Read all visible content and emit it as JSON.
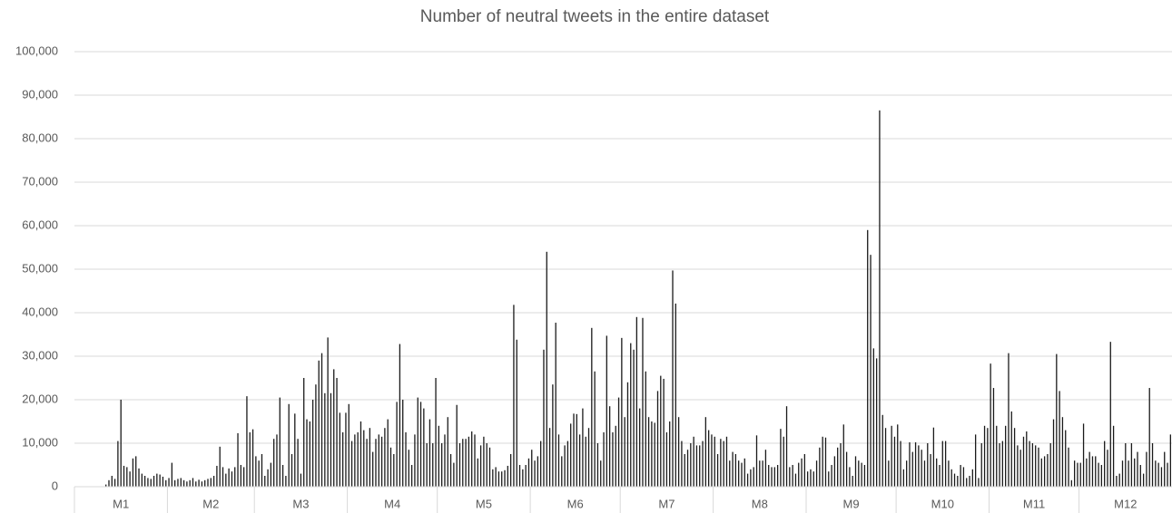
{
  "chart_data": {
    "type": "bar",
    "title": "Number of neutral tweets in the entire dataset",
    "color": "#1a1a1a",
    "grid": true,
    "ylim": [
      0,
      100000
    ],
    "yticks": [
      0,
      {
        "value": 10000,
        "label": "10,000"
      },
      {
        "value": 20000,
        "label": "20,000"
      },
      {
        "value": 30000,
        "label": "30,000"
      },
      {
        "value": 40000,
        "label": "40,000"
      },
      {
        "value": 50000,
        "label": "50,000"
      },
      {
        "value": 60000,
        "label": "60,000"
      },
      {
        "value": 70000,
        "label": "70,000"
      },
      {
        "value": 80000,
        "label": "80,000"
      },
      {
        "value": 90000,
        "label": "90,000"
      },
      {
        "value": 100000,
        "label": "100,000"
      }
    ],
    "groups": [
      {
        "label": "M1",
        "values": [
          0,
          0,
          0,
          0,
          0,
          0,
          0,
          0,
          0,
          0,
          500,
          1500,
          2500,
          1800,
          10500,
          20000,
          4800,
          4500,
          3500,
          6500,
          7000,
          4200,
          3000,
          2500,
          2000,
          1800,
          2500,
          3000,
          2800,
          2300,
          1500
        ]
      },
      {
        "label": "M2",
        "values": [
          2000,
          5500,
          1500,
          1800,
          2000,
          1500,
          1200,
          1500,
          2000,
          1200,
          1600,
          1200,
          1500,
          1800,
          2000,
          2500,
          4800,
          9200,
          4500,
          3000,
          4200,
          3500,
          4500,
          12300,
          5000,
          4500,
          20800,
          12500,
          13200
        ]
      },
      {
        "label": "M3",
        "values": [
          7000,
          6000,
          7500,
          2500,
          4000,
          5500,
          11000,
          12000,
          20500,
          5000,
          2500,
          19000,
          7500,
          16800,
          11000,
          3000,
          25000,
          15500,
          15000,
          20000,
          23500,
          29000,
          30700,
          21500,
          34300,
          21500,
          27000,
          25000,
          17000,
          12500,
          17000
        ]
      },
      {
        "label": "M4",
        "values": [
          19000,
          10500,
          12000,
          12500,
          15000,
          13000,
          11000,
          13500,
          8000,
          11000,
          12000,
          11500,
          13500,
          15500,
          9000,
          7500,
          19500,
          32800,
          20000,
          12500,
          8500,
          5000,
          12000,
          20500,
          19500,
          18000,
          10000,
          15500,
          10000,
          25000
        ]
      },
      {
        "label": "M5",
        "values": [
          14000,
          10000,
          12000,
          16000,
          7500,
          5500,
          18800,
          10000,
          11000,
          11000,
          11500,
          12700,
          12000,
          6500,
          9500,
          11500,
          10000,
          9000,
          4000,
          4500,
          3500,
          3500,
          3800,
          4800,
          7500,
          41800,
          33800,
          5000,
          4000,
          5000,
          6500
        ]
      },
      {
        "label": "M6",
        "values": [
          8500,
          6000,
          7000,
          10500,
          31500,
          54000,
          13500,
          23500,
          37700,
          12000,
          7000,
          9500,
          10500,
          14500,
          16800,
          16700,
          12000,
          18000,
          11500,
          13500,
          36500,
          26500,
          10000,
          6000,
          12500,
          34700,
          18500,
          12500,
          14000,
          20500
        ]
      },
      {
        "label": "M7",
        "values": [
          34200,
          16000,
          24000,
          33000,
          31500,
          39000,
          18000,
          38800,
          26500,
          16000,
          15000,
          14700,
          22000,
          25500,
          24800,
          12500,
          15000,
          49700,
          42100,
          16000,
          10500,
          7500,
          8500,
          10000,
          11500,
          9500,
          9500,
          10500,
          16000,
          13000,
          12000
        ]
      },
      {
        "label": "M8",
        "values": [
          11500,
          7500,
          11000,
          10500,
          11500,
          6000,
          8000,
          7500,
          6000,
          5500,
          6500,
          3000,
          4000,
          4500,
          11800,
          6000,
          6000,
          8500,
          5000,
          4500,
          4500,
          5000,
          13300,
          11500,
          18500,
          4500,
          5000,
          3000,
          5500,
          6500,
          7500
        ]
      },
      {
        "label": "M9",
        "values": [
          3500,
          4000,
          3500,
          6000,
          9000,
          11500,
          11300,
          3500,
          5000,
          7000,
          9000,
          10000,
          14300,
          8000,
          4500,
          2500,
          7000,
          6000,
          5500,
          5000,
          59000,
          53300,
          31800,
          29500,
          86500,
          16500,
          13500,
          6000,
          14000,
          11500
        ]
      },
      {
        "label": "M10",
        "values": [
          14300,
          10500,
          4000,
          6000,
          10200,
          8000,
          10200,
          9500,
          8500,
          6000,
          10000,
          7500,
          13600,
          6500,
          5000,
          10500,
          10500,
          6000,
          4000,
          3000,
          2500,
          5000,
          4500,
          2000,
          2500,
          4000,
          12000,
          2000,
          10000,
          14000,
          13500
        ]
      },
      {
        "label": "M11",
        "values": [
          28300,
          22700,
          14000,
          10000,
          10500,
          14000,
          30700,
          17300,
          13500,
          9500,
          8500,
          11500,
          12700,
          10500,
          10000,
          9500,
          9000,
          6500,
          7000,
          7500,
          10000,
          15500,
          30500,
          22000,
          16000,
          13000,
          9000,
          1500,
          6000,
          5500
        ]
      },
      {
        "label": "M12",
        "values": [
          5500,
          14500,
          6500,
          8000,
          7000,
          7000,
          5500,
          5000,
          10500,
          8500,
          33300,
          14000,
          2500,
          3000,
          6000,
          10000,
          6000,
          10000,
          6500,
          8000,
          5000,
          3000,
          8000,
          22700,
          10000,
          6000,
          5500,
          4500,
          8000,
          5500,
          12000
        ]
      }
    ]
  }
}
